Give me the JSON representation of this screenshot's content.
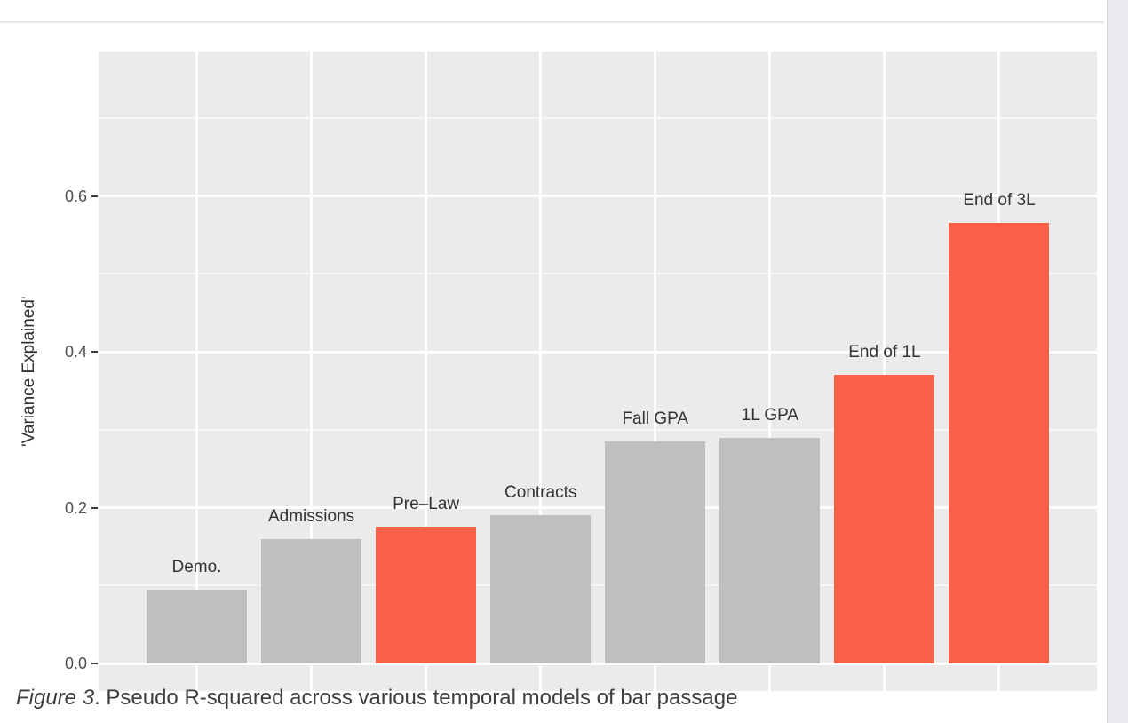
{
  "page": {
    "background": "#ffffff",
    "top_rule_color": "#e7e7e7",
    "right_strip_color": "#e8eaed"
  },
  "figure": {
    "caption_prefix": "Figure 3",
    "caption_text": ". Pseudo R-squared across various temporal models of bar passage"
  },
  "chart_data": {
    "type": "bar",
    "title": "",
    "xlabel": "",
    "ylabel": "'Variance Explained'",
    "categories": [
      "Demo.",
      "Admissions",
      "Pre–Law",
      "Contracts",
      "Fall GPA",
      "1L GPA",
      "End of 1L",
      "End of 3L"
    ],
    "values": [
      0.095,
      0.16,
      0.175,
      0.19,
      0.285,
      0.29,
      0.37,
      0.565
    ],
    "highlighted": [
      false,
      false,
      true,
      false,
      false,
      false,
      true,
      true
    ],
    "bar_colors": {
      "default": "#bfbfbf",
      "highlight": "#fb6148"
    },
    "label_position": "above-bars",
    "yticks": [
      0.0,
      0.2,
      0.4,
      0.6
    ],
    "ytick_format": "one-decimal",
    "ylim": [
      -0.035,
      0.785
    ],
    "grid": {
      "horizontal": "major+minor white",
      "vertical": "major at category centers",
      "panel_color": "#ebebeb"
    },
    "legend": "none"
  }
}
